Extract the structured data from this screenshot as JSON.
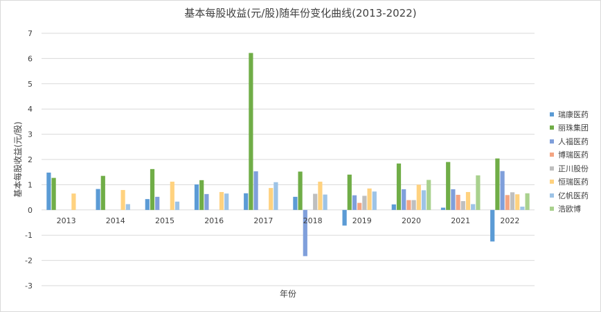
{
  "chart_data": {
    "type": "bar",
    "title": "基本每股收益(元/股)随年份变化曲线(2013-2022)",
    "xlabel": "年份",
    "ylabel": "基本每股收益(元/股)",
    "ylim": [
      -3,
      7
    ],
    "yticks": [
      -3,
      -2,
      -1,
      0,
      1,
      2,
      3,
      4,
      5,
      6,
      7
    ],
    "grid": true,
    "legend_position": "right",
    "categories": [
      "2013",
      "2014",
      "2015",
      "2016",
      "2017",
      "2018",
      "2019",
      "2020",
      "2021",
      "2022"
    ],
    "series": [
      {
        "name": "瑞康医药",
        "color": "#5b9bd5",
        "values": [
          1.48,
          0.83,
          0.43,
          1.01,
          0.66,
          0.52,
          -0.62,
          0.22,
          0.09,
          -1.25
        ]
      },
      {
        "name": "丽珠集团",
        "color": "#70ad47",
        "values": [
          1.27,
          1.35,
          1.62,
          1.18,
          6.22,
          1.52,
          1.4,
          1.84,
          1.9,
          2.04
        ]
      },
      {
        "name": "人福医药",
        "color": "#7f9fdb",
        "values": [
          null,
          null,
          0.52,
          0.63,
          1.53,
          -1.83,
          0.58,
          0.82,
          0.82,
          1.54
        ]
      },
      {
        "name": "博瑞医药",
        "color": "#f4a582",
        "values": [
          null,
          null,
          null,
          null,
          null,
          null,
          0.28,
          0.39,
          0.6,
          0.59
        ]
      },
      {
        "name": "正川股份",
        "color": "#bfbfbf",
        "values": [
          null,
          null,
          null,
          null,
          null,
          0.64,
          0.56,
          0.39,
          0.35,
          0.7
        ]
      },
      {
        "name": "恒瑞医药",
        "color": "#ffd27f",
        "values": [
          0.65,
          0.79,
          1.12,
          0.71,
          0.87,
          1.12,
          0.85,
          1.0,
          0.71,
          0.62
        ]
      },
      {
        "name": "亿帆医药",
        "color": "#9dc3e6",
        "values": [
          null,
          0.23,
          0.33,
          0.65,
          1.1,
          0.61,
          0.73,
          0.78,
          0.23,
          0.13
        ]
      },
      {
        "name": "浩欧博",
        "color": "#a9d18e",
        "values": [
          null,
          null,
          null,
          null,
          null,
          null,
          null,
          1.19,
          1.37,
          0.66
        ]
      }
    ]
  }
}
